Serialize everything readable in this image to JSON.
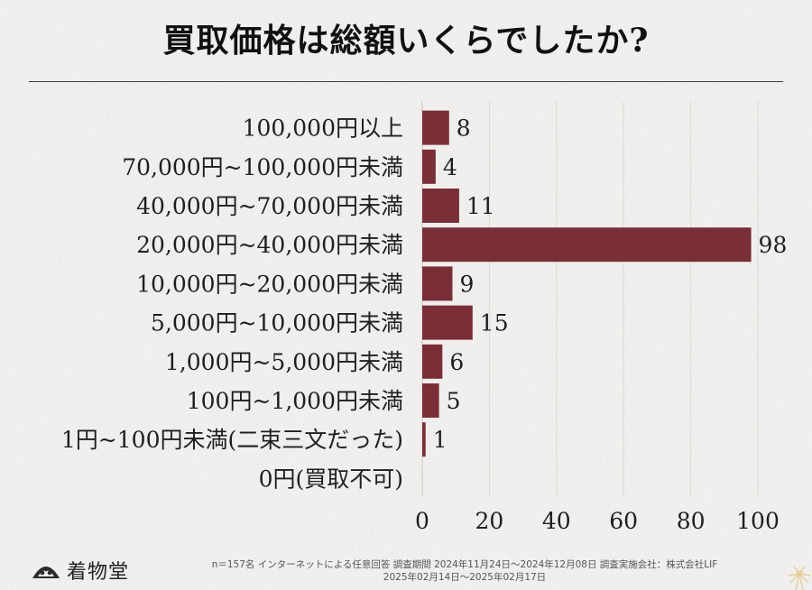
{
  "title": "買取価格は総額いくらでしたか?",
  "chart_data": {
    "type": "bar",
    "orientation": "horizontal",
    "categories": [
      "100,000円以上",
      "70,000円~100,000円未満",
      "40,000円~70,000円未満",
      "20,000円~40,000円未満",
      "10,000円~20,000円未満",
      "5,000円~10,000円未満",
      "1,000円~5,000円未満",
      "100円~1,000円未満",
      "1円~100円未満(二束三文だった)",
      "0円(買取不可)"
    ],
    "values": [
      8,
      4,
      11,
      98,
      9,
      15,
      6,
      5,
      1,
      0
    ],
    "data_labels": [
      "8",
      "4",
      "11",
      "98",
      "9",
      "15",
      "6",
      "5",
      "1",
      ""
    ],
    "xlim": [
      0,
      100
    ],
    "xticks": [
      "0",
      "20",
      "40",
      "60",
      "80",
      "100"
    ],
    "bar_color": "#7a2e35",
    "grid": true
  },
  "footer": {
    "brand": "着物堂",
    "note_line1": "n＝157名 インターネットによる任意回答 調査期間 2024年11月24日～2024年12月08日 調査実施会社：株式会社LIF",
    "note_line2": "2025年02月14日～2025年02月17日"
  }
}
